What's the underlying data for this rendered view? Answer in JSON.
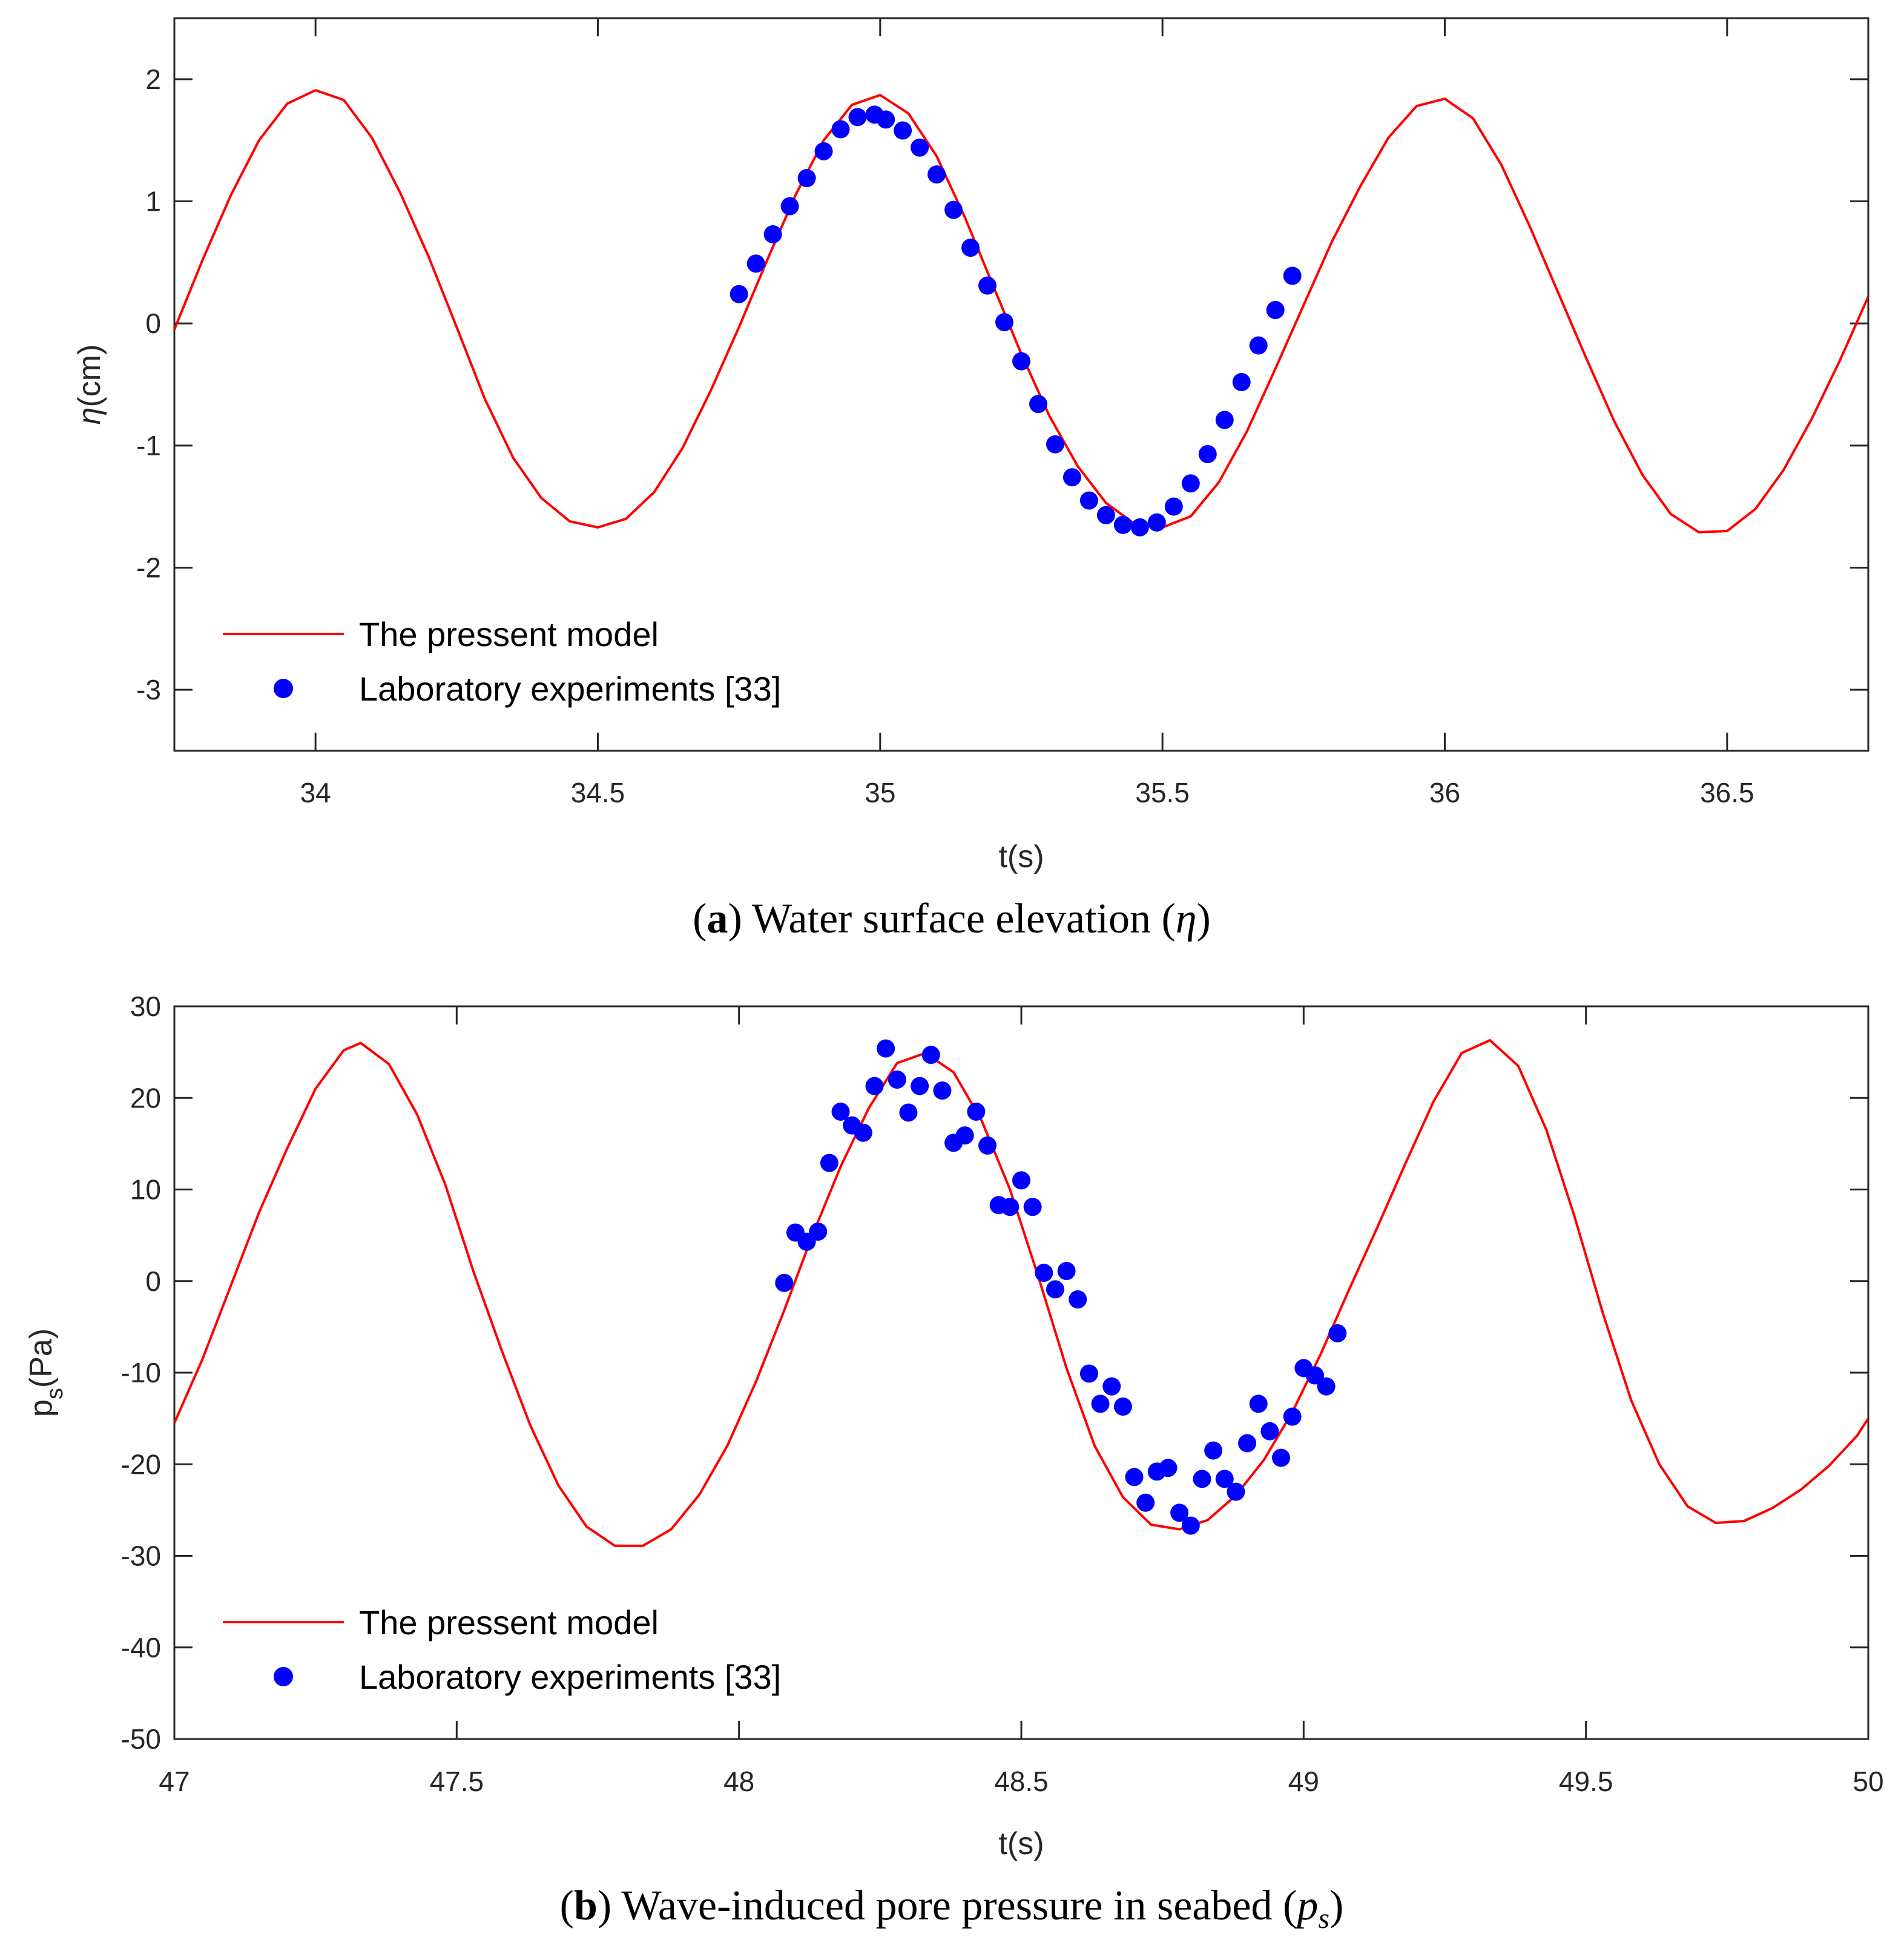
{
  "chart_data": [
    {
      "type": "line",
      "caption": {
        "letter": "a",
        "text": " Water surface elevation (",
        "symbol": "η",
        "close": ")"
      },
      "xlabel": "t(s)",
      "ylabel": {
        "symbol": "η",
        "text": "(cm)"
      },
      "xlim": [
        33.75,
        36.75
      ],
      "ylim": [
        -3.5,
        2.5
      ],
      "xticks": [
        34,
        34.5,
        35,
        35.5,
        36,
        36.5
      ],
      "xtick_labels": [
        "34",
        "34.5",
        "35",
        "35.5",
        "36",
        "36.5"
      ],
      "yticks": [
        -3,
        -2,
        -1,
        0,
        1,
        2
      ],
      "ytick_labels": [
        "-3",
        "-2",
        "-1",
        "0",
        "1",
        "2"
      ],
      "grid": false,
      "legend_position": "bottom-left",
      "series": [
        {
          "name": "The pressent model",
          "kind": "line",
          "color": "#ff0000",
          "x": [
            33.75,
            33.8,
            33.85,
            33.9,
            33.95,
            34.0,
            34.05,
            34.1,
            34.15,
            34.2,
            34.25,
            34.3,
            34.35,
            34.4,
            34.45,
            34.5,
            34.55,
            34.6,
            34.65,
            34.7,
            34.75,
            34.8,
            34.85,
            34.9,
            34.95,
            35.0,
            35.05,
            35.1,
            35.15,
            35.2,
            35.25,
            35.3,
            35.35,
            35.4,
            35.45,
            35.5,
            35.55,
            35.6,
            35.65,
            35.7,
            35.75,
            35.8,
            35.85,
            35.9,
            35.95,
            36.0,
            36.05,
            36.1,
            36.15,
            36.2,
            36.25,
            36.3,
            36.35,
            36.4,
            36.45,
            36.5,
            36.55,
            36.6,
            36.65,
            36.7,
            36.75
          ],
          "y": [
            -0.05,
            0.52,
            1.05,
            1.5,
            1.8,
            1.91,
            1.83,
            1.52,
            1.07,
            0.55,
            -0.03,
            -0.62,
            -1.1,
            -1.43,
            -1.62,
            -1.67,
            -1.6,
            -1.38,
            -1.02,
            -0.55,
            -0.03,
            0.52,
            1.05,
            1.5,
            1.79,
            1.87,
            1.72,
            1.37,
            0.87,
            0.31,
            -0.25,
            -0.76,
            -1.17,
            -1.47,
            -1.64,
            -1.67,
            -1.58,
            -1.3,
            -0.88,
            -0.37,
            0.15,
            0.67,
            1.12,
            1.52,
            1.78,
            1.84,
            1.68,
            1.3,
            0.8,
            0.26,
            -0.28,
            -0.8,
            -1.24,
            -1.56,
            -1.71,
            -1.7,
            -1.52,
            -1.2,
            -0.78,
            -0.3,
            0.22
          ]
        },
        {
          "name": "Laboratory experiments [33]",
          "kind": "scatter",
          "color": "#0000ff",
          "x": [
            34.75,
            34.78,
            34.81,
            34.84,
            34.87,
            34.9,
            34.93,
            34.96,
            34.99,
            35.01,
            35.04,
            35.07,
            35.1,
            35.13,
            35.16,
            35.19,
            35.22,
            35.25,
            35.28,
            35.31,
            35.34,
            35.37,
            35.4,
            35.43,
            35.46,
            35.49,
            35.52,
            35.55,
            35.58,
            35.61,
            35.64,
            35.67,
            35.7,
            35.73
          ],
          "y": [
            0.24,
            0.49,
            0.73,
            0.96,
            1.19,
            1.41,
            1.59,
            1.69,
            1.71,
            1.67,
            1.58,
            1.44,
            1.22,
            0.93,
            0.62,
            0.31,
            0.01,
            -0.31,
            -0.66,
            -0.99,
            -1.26,
            -1.45,
            -1.57,
            -1.65,
            -1.67,
            -1.63,
            -1.5,
            -1.31,
            -1.07,
            -0.79,
            -0.48,
            -0.18,
            0.11,
            0.39
          ]
        }
      ]
    },
    {
      "type": "line",
      "caption": {
        "letter": "b",
        "text": " Wave-induced pore pressure in seabed (",
        "symbol": "p",
        "sub": "s",
        "close": ")"
      },
      "xlabel": "t(s)",
      "ylabel": {
        "symbol": "p",
        "sub": "s",
        "text": "(Pa)"
      },
      "xlim": [
        47,
        50
      ],
      "ylim": [
        -50,
        30
      ],
      "xticks": [
        47,
        47.5,
        48,
        48.5,
        49,
        49.5,
        50
      ],
      "xtick_labels": [
        "47",
        "47.5",
        "48",
        "48.5",
        "49",
        "49.5",
        "50"
      ],
      "yticks": [
        -50,
        -40,
        -30,
        -20,
        -10,
        0,
        10,
        20,
        30
      ],
      "ytick_labels": [
        "-50",
        "-40",
        "-30",
        "-20",
        "-10",
        "0",
        "10",
        "20",
        "30"
      ],
      "grid": false,
      "legend_position": "bottom-left",
      "series": [
        {
          "name": "The pressent model",
          "kind": "line",
          "color": "#ff0000",
          "x": [
            47.0,
            47.05,
            47.1,
            47.15,
            47.2,
            47.25,
            47.3,
            47.33,
            47.38,
            47.43,
            47.48,
            47.53,
            47.58,
            47.63,
            47.68,
            47.73,
            47.78,
            47.83,
            47.88,
            47.93,
            47.98,
            48.03,
            48.08,
            48.13,
            48.18,
            48.23,
            48.28,
            48.33,
            48.38,
            48.43,
            48.48,
            48.53,
            48.58,
            48.63,
            48.68,
            48.73,
            48.78,
            48.83,
            48.88,
            48.93,
            48.98,
            49.03,
            49.08,
            49.13,
            49.18,
            49.23,
            49.28,
            49.33,
            49.38,
            49.43,
            49.48,
            49.53,
            49.58,
            49.63,
            49.68,
            49.73,
            49.78,
            49.83,
            49.88,
            49.93,
            49.98,
            50.0
          ],
          "y": [
            -15.5,
            -8.5,
            -0.5,
            7.5,
            14.5,
            21.0,
            25.2,
            26.0,
            23.7,
            18.2,
            10.5,
            1.0,
            -7.6,
            -15.7,
            -22.3,
            -26.8,
            -28.9,
            -28.9,
            -27.1,
            -23.3,
            -17.9,
            -11.0,
            -3.2,
            5.0,
            12.5,
            18.9,
            23.8,
            24.9,
            22.8,
            17.5,
            10.0,
            0.5,
            -9.5,
            -18.0,
            -23.6,
            -26.6,
            -27.1,
            -26.1,
            -23.4,
            -19.5,
            -14.3,
            -8.0,
            -1.0,
            5.8,
            12.8,
            19.6,
            24.9,
            26.3,
            23.5,
            16.5,
            7.0,
            -3.5,
            -13.0,
            -20.0,
            -24.6,
            -26.4,
            -26.2,
            -24.8,
            -22.8,
            -20.2,
            -16.9,
            -15.0
          ]
        },
        {
          "name": "Laboratory experiments [33]",
          "kind": "scatter",
          "color": "#0000ff",
          "x": [
            48.08,
            48.1,
            48.12,
            48.14,
            48.16,
            48.18,
            48.2,
            48.22,
            48.24,
            48.26,
            48.28,
            48.3,
            48.32,
            48.34,
            48.36,
            48.38,
            48.4,
            48.42,
            48.44,
            48.46,
            48.48,
            48.5,
            48.52,
            48.54,
            48.56,
            48.58,
            48.6,
            48.62,
            48.64,
            48.66,
            48.68,
            48.7,
            48.72,
            48.74,
            48.76,
            48.78,
            48.8,
            48.82,
            48.84,
            48.86,
            48.88,
            48.9,
            48.92,
            48.94,
            48.96,
            48.98,
            49.0,
            49.02,
            49.04,
            49.06
          ],
          "y": [
            -0.2,
            5.3,
            4.3,
            5.4,
            12.9,
            18.5,
            17.0,
            16.2,
            21.3,
            25.4,
            22.0,
            18.4,
            21.3,
            24.7,
            20.8,
            15.1,
            15.9,
            18.5,
            14.8,
            8.3,
            8.1,
            11.0,
            8.1,
            0.9,
            -0.9,
            1.1,
            -2.0,
            -10.1,
            -13.4,
            -11.5,
            -13.7,
            -21.4,
            -24.2,
            -20.8,
            -20.4,
            -25.3,
            -26.7,
            -21.6,
            -18.5,
            -21.6,
            -23.0,
            -17.7,
            -13.4,
            -16.4,
            -19.3,
            -14.8,
            -9.5,
            -10.3,
            -11.5,
            -5.7
          ]
        }
      ]
    }
  ]
}
